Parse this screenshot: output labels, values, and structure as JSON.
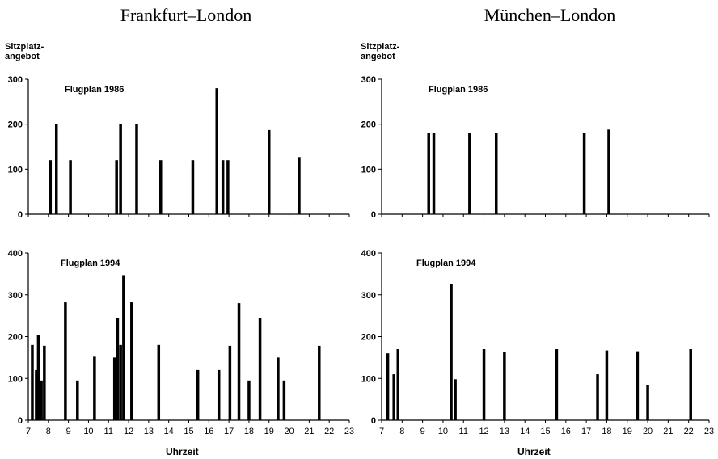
{
  "columns": {
    "left_title": "Frankfurt–London",
    "right_title": "München–London"
  },
  "ylabel_lines": [
    "Sitzplatz-",
    "angebot"
  ],
  "xlabel": "Uhrzeit",
  "chart_data": [
    {
      "type": "bar",
      "route": "Frankfurt–London",
      "annotation": "Flugplan 1986",
      "ylim": [
        0,
        300
      ],
      "yticks": [
        0,
        100,
        200,
        300
      ],
      "xlim": [
        7,
        23
      ],
      "xticks": [
        7,
        8,
        9,
        10,
        11,
        12,
        13,
        14,
        15,
        16,
        17,
        18,
        19,
        20,
        21,
        22,
        23
      ],
      "bars": [
        {
          "x": 8.1,
          "y": 120
        },
        {
          "x": 8.4,
          "y": 200
        },
        {
          "x": 9.1,
          "y": 120
        },
        {
          "x": 11.4,
          "y": 120
        },
        {
          "x": 11.6,
          "y": 200
        },
        {
          "x": 12.4,
          "y": 200
        },
        {
          "x": 13.6,
          "y": 120
        },
        {
          "x": 15.2,
          "y": 120
        },
        {
          "x": 16.4,
          "y": 280
        },
        {
          "x": 16.7,
          "y": 120
        },
        {
          "x": 16.95,
          "y": 120
        },
        {
          "x": 19.0,
          "y": 187
        },
        {
          "x": 20.5,
          "y": 127
        }
      ]
    },
    {
      "type": "bar",
      "route": "München–London",
      "annotation": "Flugplan 1986",
      "ylim": [
        0,
        300
      ],
      "yticks": [
        0,
        100,
        200,
        300
      ],
      "xlim": [
        7,
        23
      ],
      "xticks": [
        7,
        8,
        9,
        10,
        11,
        12,
        13,
        14,
        15,
        16,
        17,
        18,
        19,
        20,
        21,
        22,
        23
      ],
      "bars": [
        {
          "x": 9.3,
          "y": 180
        },
        {
          "x": 9.55,
          "y": 180
        },
        {
          "x": 11.3,
          "y": 180
        },
        {
          "x": 12.6,
          "y": 180
        },
        {
          "x": 16.9,
          "y": 180
        },
        {
          "x": 18.1,
          "y": 188
        }
      ]
    },
    {
      "type": "bar",
      "route": "Frankfurt–London",
      "annotation": "Flugplan 1994",
      "ylim": [
        0,
        400
      ],
      "yticks": [
        0,
        100,
        200,
        300,
        400
      ],
      "xlim": [
        7,
        23
      ],
      "xticks": [
        7,
        8,
        9,
        10,
        11,
        12,
        13,
        14,
        15,
        16,
        17,
        18,
        19,
        20,
        21,
        22,
        23
      ],
      "bars": [
        {
          "x": 7.2,
          "y": 180
        },
        {
          "x": 7.4,
          "y": 120
        },
        {
          "x": 7.5,
          "y": 203
        },
        {
          "x": 7.65,
          "y": 95
        },
        {
          "x": 7.8,
          "y": 178
        },
        {
          "x": 8.85,
          "y": 282
        },
        {
          "x": 9.45,
          "y": 95
        },
        {
          "x": 10.3,
          "y": 152
        },
        {
          "x": 11.3,
          "y": 150
        },
        {
          "x": 11.45,
          "y": 245
        },
        {
          "x": 11.6,
          "y": 180
        },
        {
          "x": 11.75,
          "y": 347
        },
        {
          "x": 12.15,
          "y": 282
        },
        {
          "x": 13.5,
          "y": 180
        },
        {
          "x": 15.45,
          "y": 120
        },
        {
          "x": 16.5,
          "y": 120
        },
        {
          "x": 17.05,
          "y": 178
        },
        {
          "x": 17.5,
          "y": 280
        },
        {
          "x": 18.0,
          "y": 95
        },
        {
          "x": 18.55,
          "y": 245
        },
        {
          "x": 19.45,
          "y": 150
        },
        {
          "x": 19.75,
          "y": 95
        },
        {
          "x": 21.5,
          "y": 178
        }
      ]
    },
    {
      "type": "bar",
      "route": "München–London",
      "annotation": "Flugplan 1994",
      "ylim": [
        0,
        400
      ],
      "yticks": [
        0,
        100,
        200,
        300,
        400
      ],
      "xlim": [
        7,
        23
      ],
      "xticks": [
        7,
        8,
        9,
        10,
        11,
        12,
        13,
        14,
        15,
        16,
        17,
        18,
        19,
        20,
        21,
        22,
        23
      ],
      "bars": [
        {
          "x": 7.3,
          "y": 160
        },
        {
          "x": 7.6,
          "y": 110
        },
        {
          "x": 7.8,
          "y": 170
        },
        {
          "x": 10.4,
          "y": 325
        },
        {
          "x": 10.6,
          "y": 98
        },
        {
          "x": 12.0,
          "y": 170
        },
        {
          "x": 13.0,
          "y": 163
        },
        {
          "x": 15.55,
          "y": 170
        },
        {
          "x": 17.55,
          "y": 110
        },
        {
          "x": 18.0,
          "y": 167
        },
        {
          "x": 19.5,
          "y": 165
        },
        {
          "x": 20.0,
          "y": 85
        },
        {
          "x": 22.1,
          "y": 170
        }
      ]
    }
  ]
}
